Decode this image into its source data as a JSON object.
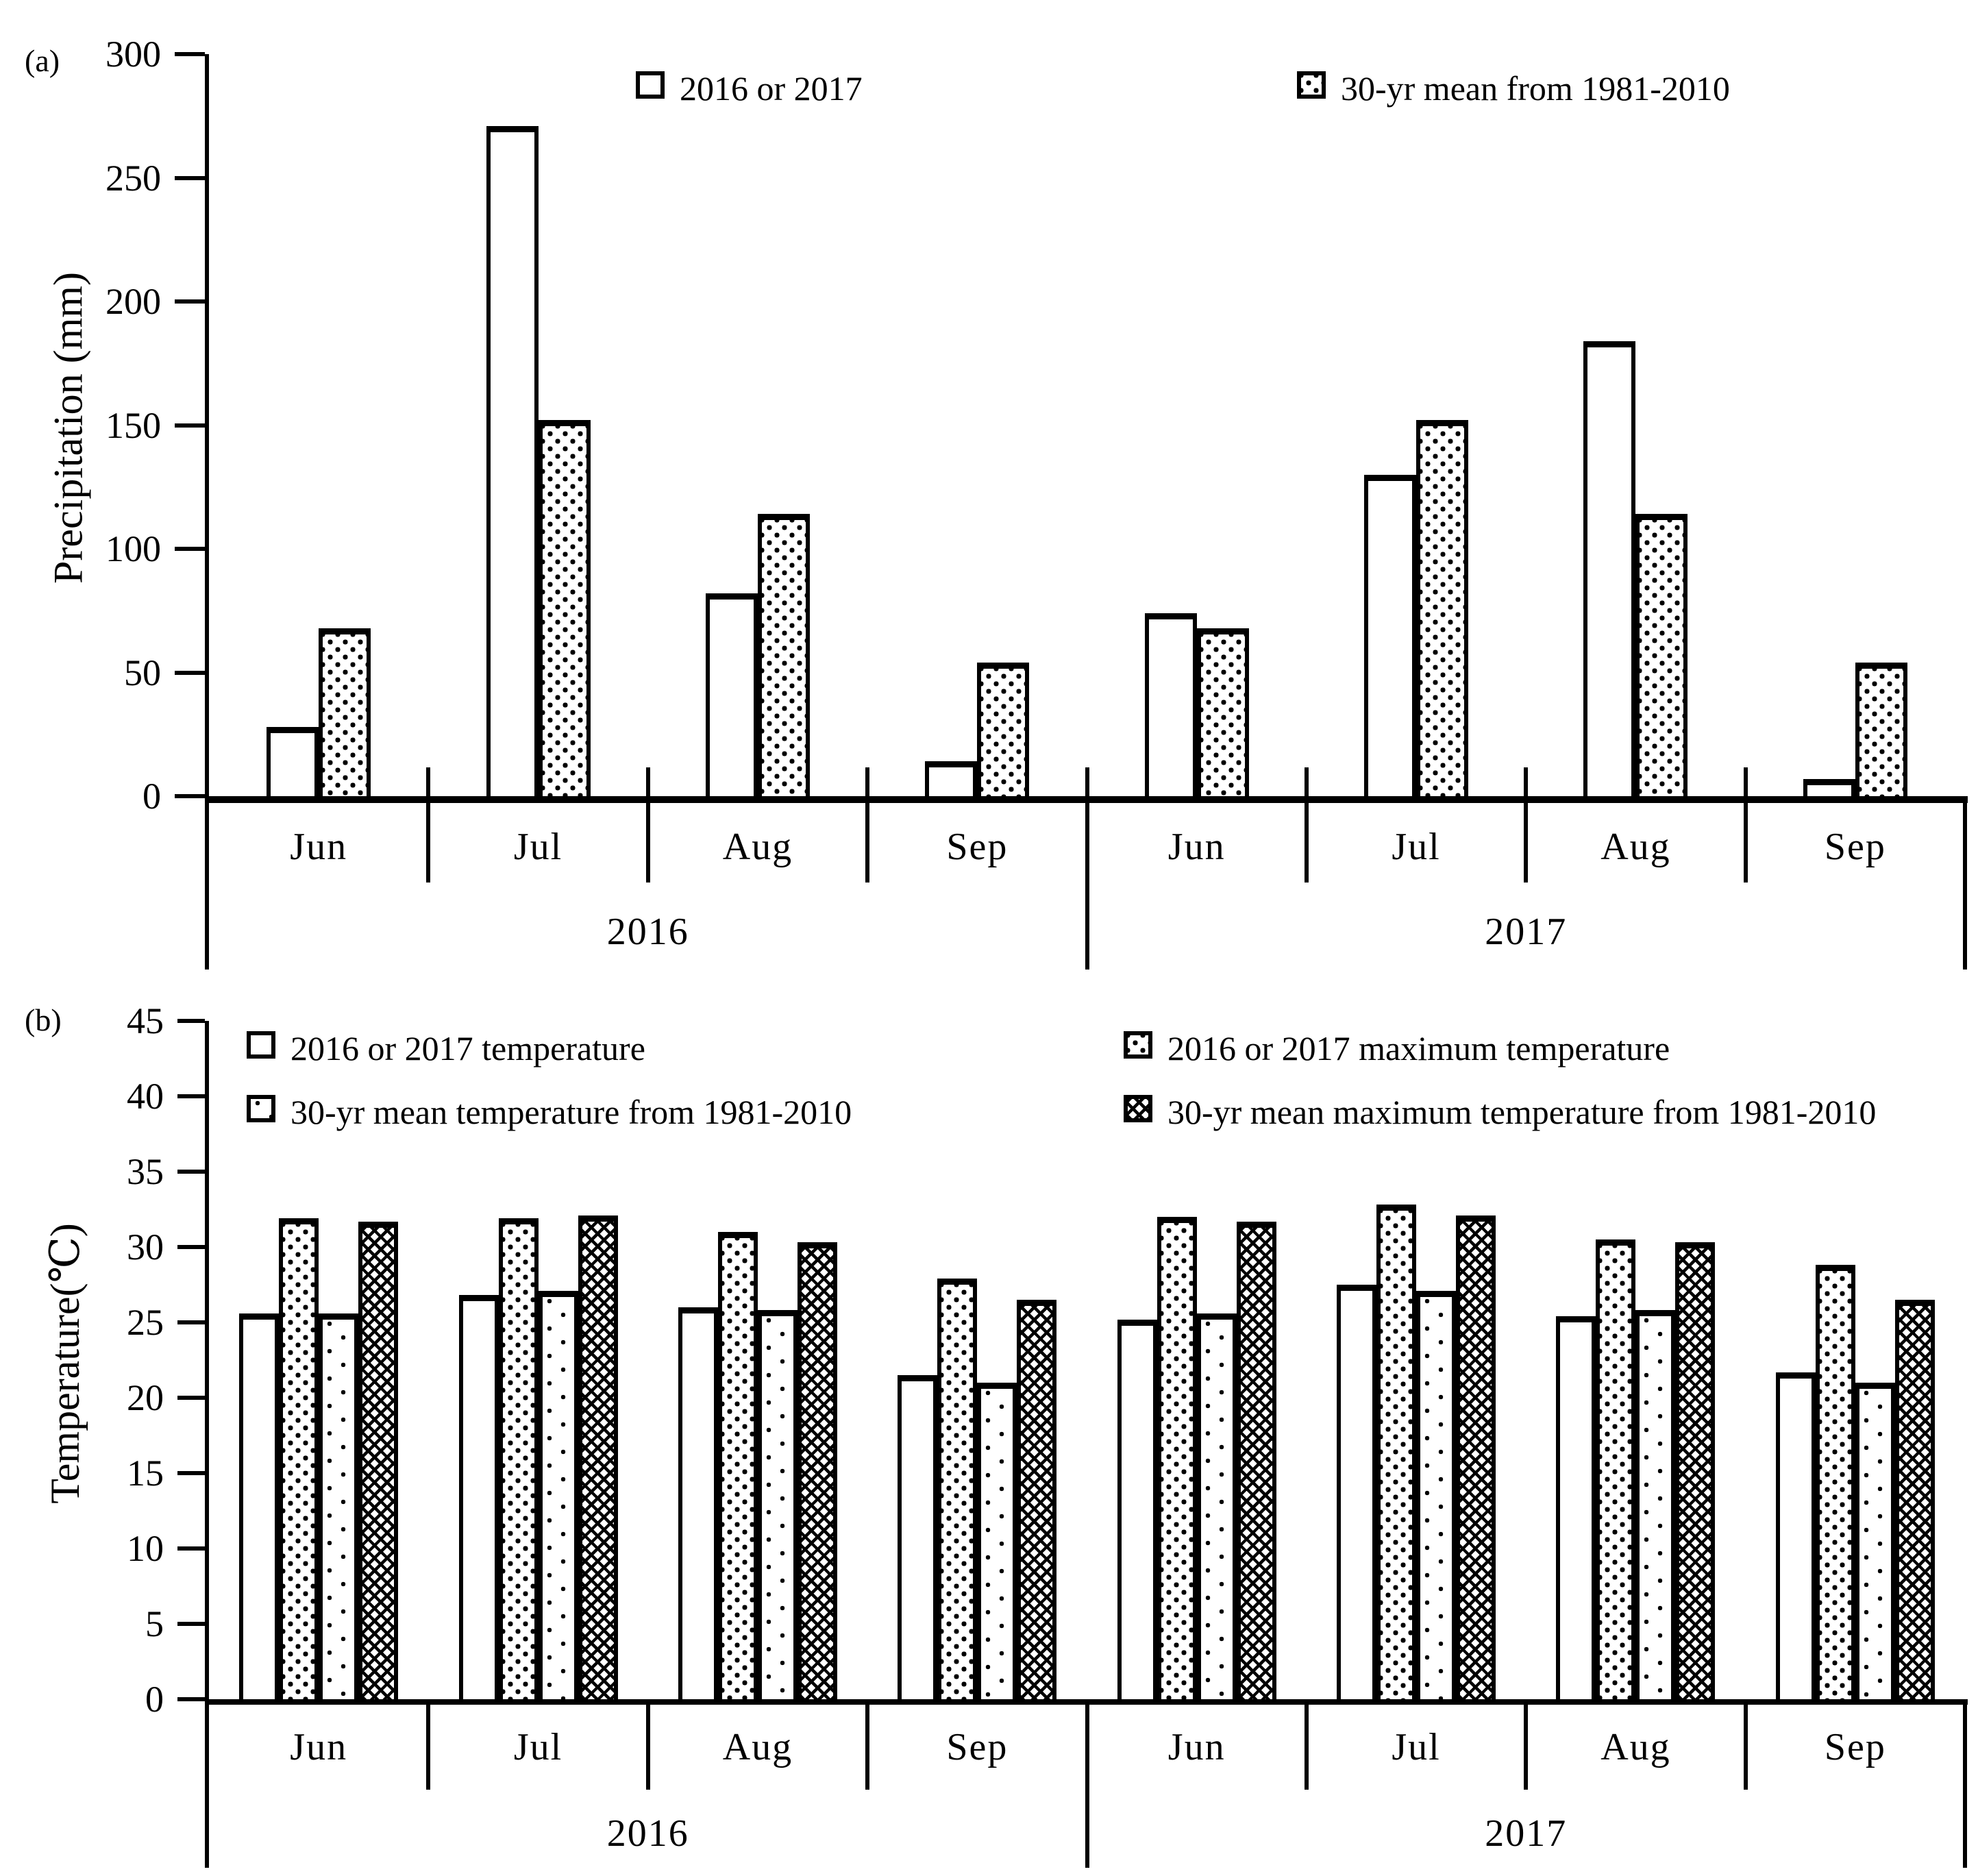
{
  "chart_data": [
    {
      "type": "bar",
      "panel_label": "(a)",
      "title": "",
      "ylabel": "Precipitation (mm)",
      "ylim": [
        0,
        300
      ],
      "ytick_step": 50,
      "yticks": [
        300,
        250,
        200,
        150,
        100,
        50,
        0
      ],
      "grid": "off",
      "legend_position": "top-inside",
      "categories": [
        "Jun",
        "Jul",
        "Aug",
        "Sep",
        "Jun",
        "Jul",
        "Aug",
        "Sep"
      ],
      "year_groups": [
        {
          "label": "2016",
          "span": 4
        },
        {
          "label": "2017",
          "span": 4
        }
      ],
      "series": [
        {
          "name": "2016 or 2017",
          "pattern": "plain",
          "values": [
            28,
            271,
            82,
            14,
            74,
            130,
            184,
            7
          ]
        },
        {
          "name": "30-yr mean from 1981-2010",
          "pattern": "dots-dense",
          "values": [
            68,
            152,
            114,
            54,
            68,
            152,
            114,
            54
          ]
        }
      ]
    },
    {
      "type": "bar",
      "panel_label": "(b)",
      "title": "",
      "ylabel": "Temperature(℃)",
      "ylim": [
        0,
        45
      ],
      "ytick_step": 5,
      "yticks": [
        45,
        40,
        35,
        30,
        25,
        20,
        15,
        10,
        5,
        0
      ],
      "grid": "off",
      "legend_position": "top-inside-2x2",
      "categories": [
        "Jun",
        "Jul",
        "Aug",
        "Sep",
        "Jun",
        "Jul",
        "Aug",
        "Sep"
      ],
      "year_groups": [
        {
          "label": "2016",
          "span": 4
        },
        {
          "label": "2017",
          "span": 4
        }
      ],
      "series": [
        {
          "name": "2016 or 2017 temperature",
          "pattern": "plain",
          "values": [
            25.6,
            26.8,
            26.0,
            21.5,
            25.2,
            27.5,
            25.4,
            21.7
          ]
        },
        {
          "name": "2016 or 2017 maximum temperature",
          "pattern": "dots-dense",
          "values": [
            31.9,
            31.9,
            31.0,
            27.9,
            32.0,
            32.8,
            30.5,
            28.8
          ]
        },
        {
          "name": "30-yr mean temperature from 1981-2010",
          "pattern": "dots-sparse",
          "values": [
            25.6,
            27.1,
            25.8,
            21.0,
            25.6,
            27.1,
            25.8,
            21.0
          ]
        },
        {
          "name": "30-yr mean maximum temperature from 1981-2010",
          "pattern": "crosshatch",
          "values": [
            31.7,
            32.1,
            30.3,
            26.5,
            31.7,
            32.1,
            30.3,
            26.5
          ]
        }
      ]
    }
  ]
}
